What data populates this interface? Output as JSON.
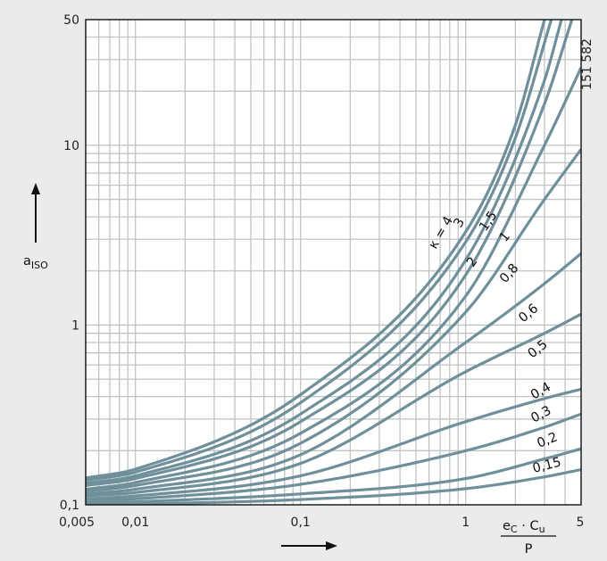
{
  "figure_id": "151 582",
  "chart_data": {
    "type": "line",
    "x_scale": "log",
    "y_scale": "log",
    "xlim": [
      0.005,
      5
    ],
    "ylim": [
      0.1,
      50
    ],
    "grid": true,
    "x_ticks": [
      "0,005",
      "0,01",
      "0,1",
      "1",
      "5"
    ],
    "y_ticks": [
      "0,1",
      "1",
      "10",
      "50"
    ],
    "ylabel": {
      "main": "a",
      "sub": "ISO"
    },
    "xlabel": {
      "num_a": "e",
      "num_a_sub": "C",
      "dot": " · ",
      "num_b": "C",
      "num_b_sub": "u",
      "den": "P"
    },
    "series": [
      {
        "name": "κ = 4",
        "label": "κ = 4",
        "points": [
          [
            0.005,
            0.141
          ],
          [
            0.01,
            0.158
          ],
          [
            0.1,
            0.41
          ],
          [
            1,
            3.3
          ],
          [
            2,
            13
          ],
          [
            3,
            50
          ]
        ]
      },
      {
        "name": "κ = 3",
        "label": "3",
        "points": [
          [
            0.005,
            0.137
          ],
          [
            0.01,
            0.152
          ],
          [
            0.1,
            0.37
          ],
          [
            1,
            2.9
          ],
          [
            2,
            11
          ],
          [
            3.3,
            50
          ]
        ]
      },
      {
        "name": "κ = 2",
        "label": "2",
        "points": [
          [
            0.005,
            0.132
          ],
          [
            0.01,
            0.145
          ],
          [
            0.1,
            0.32
          ],
          [
            1,
            2.3
          ],
          [
            3,
            23
          ],
          [
            3.8,
            50
          ]
        ]
      },
      {
        "name": "κ = 1,5",
        "label": "1,5",
        "points": [
          [
            0.005,
            0.128
          ],
          [
            0.01,
            0.14
          ],
          [
            0.1,
            0.29
          ],
          [
            1,
            1.9
          ],
          [
            3,
            17
          ],
          [
            4.4,
            50
          ]
        ]
      },
      {
        "name": "κ = 1",
        "label": "1",
        "points": [
          [
            0.005,
            0.122
          ],
          [
            0.01,
            0.133
          ],
          [
            0.1,
            0.25
          ],
          [
            1,
            1.45
          ],
          [
            3,
            10
          ],
          [
            5,
            27
          ]
        ]
      },
      {
        "name": "κ = 0,8",
        "label": "0,8",
        "points": [
          [
            0.005,
            0.119
          ],
          [
            0.01,
            0.128
          ],
          [
            0.1,
            0.22
          ],
          [
            1,
            1.18
          ],
          [
            3,
            5
          ],
          [
            5,
            9.5
          ]
        ]
      },
      {
        "name": "κ = 0,6",
        "label": "0,6",
        "points": [
          [
            0.005,
            0.115
          ],
          [
            0.01,
            0.122
          ],
          [
            0.1,
            0.19
          ],
          [
            1,
            0.8
          ],
          [
            3,
            1.7
          ],
          [
            5,
            2.5
          ]
        ]
      },
      {
        "name": "κ = 0,5",
        "label": "0,5",
        "points": [
          [
            0.005,
            0.112
          ],
          [
            0.01,
            0.117
          ],
          [
            0.1,
            0.17
          ],
          [
            1,
            0.55
          ],
          [
            3,
            0.9
          ],
          [
            5,
            1.15
          ]
        ]
      },
      {
        "name": "κ = 0,4",
        "label": "0,4",
        "points": [
          [
            0.005,
            0.108
          ],
          [
            0.01,
            0.112
          ],
          [
            0.1,
            0.145
          ],
          [
            1,
            0.29
          ],
          [
            3,
            0.39
          ],
          [
            5,
            0.44
          ]
        ]
      },
      {
        "name": "κ = 0,3",
        "label": "0,3",
        "points": [
          [
            0.005,
            0.105
          ],
          [
            0.01,
            0.108
          ],
          [
            0.1,
            0.13
          ],
          [
            1,
            0.2
          ],
          [
            3,
            0.27
          ],
          [
            5,
            0.32
          ]
        ]
      },
      {
        "name": "κ = 0,2",
        "label": "0,2",
        "points": [
          [
            0.005,
            0.102
          ],
          [
            0.01,
            0.104
          ],
          [
            0.1,
            0.115
          ],
          [
            1,
            0.14
          ],
          [
            3,
            0.18
          ],
          [
            5,
            0.205
          ]
        ]
      },
      {
        "name": "κ = 0,15",
        "label": "0,15",
        "points": [
          [
            0.005,
            0.1
          ],
          [
            0.01,
            0.101
          ],
          [
            0.1,
            0.107
          ],
          [
            1,
            0.123
          ],
          [
            3,
            0.143
          ],
          [
            5,
            0.157
          ]
        ]
      }
    ],
    "colors": {
      "background": "#e9ebec",
      "plot_area": "#ffffff",
      "grid": "#bfc4c7",
      "curve": "#6f8f9b",
      "axis": "#111111"
    }
  }
}
